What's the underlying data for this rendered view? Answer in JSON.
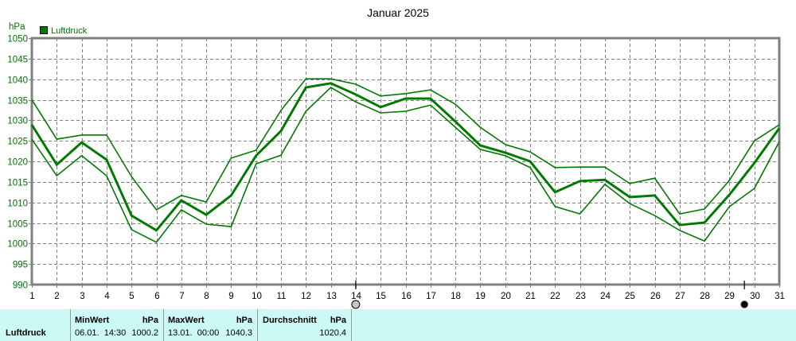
{
  "chart_data": {
    "type": "line",
    "title": "Januar 2025",
    "xlabel": "",
    "ylabel": "hPa",
    "ylim": [
      990,
      1050
    ],
    "yticks": [
      990,
      995,
      1000,
      1005,
      1010,
      1015,
      1020,
      1025,
      1030,
      1035,
      1040,
      1045,
      1050
    ],
    "x": [
      1,
      2,
      3,
      4,
      5,
      6,
      7,
      8,
      9,
      10,
      11,
      12,
      13,
      14,
      15,
      16,
      17,
      18,
      19,
      20,
      21,
      22,
      23,
      24,
      25,
      26,
      27,
      28,
      29,
      30,
      31
    ],
    "grid": true,
    "legend": {
      "position": "top-left",
      "entries": [
        "Luftdruck"
      ]
    },
    "series": [
      {
        "name": "Luftdruck Max",
        "style": "thin",
        "values": [
          1035.0,
          1025.4,
          1026.4,
          1026.4,
          1016.3,
          1008.2,
          1011.7,
          1010.1,
          1020.8,
          1022.7,
          1032.4,
          1040.1,
          1040.1,
          1038.8,
          1035.9,
          1036.5,
          1037.4,
          1033.9,
          1028.3,
          1024.1,
          1022.3,
          1018.5,
          1018.6,
          1018.6,
          1014.6,
          1015.9,
          1007.2,
          1008.4,
          1015.4,
          1025.0,
          1028.9
        ]
      },
      {
        "name": "Luftdruck",
        "style": "thick",
        "values": [
          1028.9,
          1019.2,
          1024.6,
          1020.4,
          1006.8,
          1003.2,
          1010.5,
          1007.0,
          1011.7,
          1021.4,
          1027.4,
          1038.0,
          1039.0,
          1036.3,
          1033.2,
          1035.3,
          1035.3,
          1029.7,
          1023.9,
          1022.1,
          1020.0,
          1012.5,
          1015.2,
          1015.5,
          1011.3,
          1011.7,
          1004.5,
          1005.1,
          1011.9,
          1019.6,
          1028.1
        ]
      },
      {
        "name": "Luftdruck Min",
        "style": "thin",
        "values": [
          1025.4,
          1016.5,
          1021.4,
          1016.5,
          1003.4,
          1000.3,
          1008.2,
          1004.7,
          1004.1,
          1019.4,
          1021.5,
          1032.2,
          1038.0,
          1034.5,
          1031.8,
          1032.2,
          1033.7,
          1028.3,
          1022.9,
          1021.4,
          1018.5,
          1009.0,
          1007.2,
          1014.4,
          1009.7,
          1006.8,
          1003.2,
          1000.6,
          1009.0,
          1013.4,
          1024.8
        ]
      }
    ],
    "markers": [
      {
        "type": "hatched-circle",
        "x": 14
      },
      {
        "type": "filled-circle",
        "x": 29.6
      }
    ],
    "colors": {
      "line": "#007a00",
      "grid": "#808080",
      "axis": "#808080",
      "panel_bg": "#ccf8f6"
    }
  },
  "stats": {
    "row_label": "Luftdruck",
    "min": {
      "header": "MinWert",
      "unit": "hPa",
      "datetime": "06.01.  14:30",
      "value": "1000.2"
    },
    "max": {
      "header": "MaxWert",
      "unit": "hPa",
      "datetime": "13.01.  00:00",
      "value": "1040.3"
    },
    "avg": {
      "header": "Durchschnitt",
      "unit": "hPa",
      "value": "1020.4"
    }
  }
}
